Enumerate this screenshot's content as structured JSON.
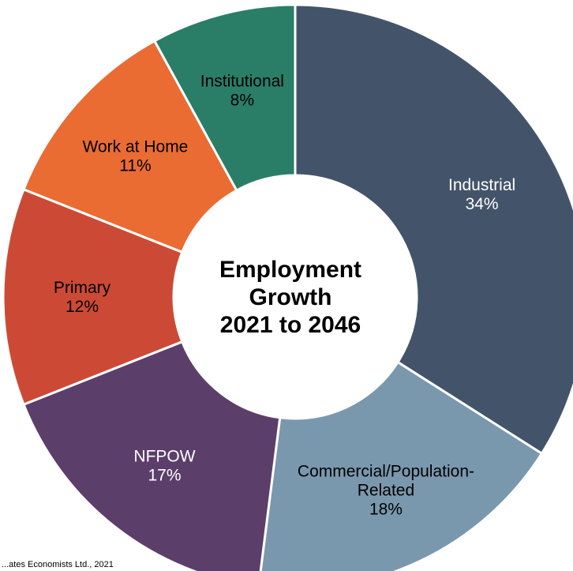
{
  "chart_data": {
    "type": "pie",
    "title": "Employment Growth 2021 to 2046",
    "title_lines": [
      "Employment",
      "Growth",
      "2021 to 2046"
    ],
    "slices": [
      {
        "name": "Industrial",
        "label_lines": [
          "Industrial"
        ],
        "value": 34,
        "value_label": "34%",
        "color": "#43546A",
        "text_color": "#ffffff"
      },
      {
        "name": "Commercial/Population-Related",
        "label_lines": [
          "Commercial/Population-",
          "Related"
        ],
        "value": 18,
        "value_label": "18%",
        "color": "#7A98AD",
        "text_color": "#000000"
      },
      {
        "name": "NFPOW",
        "label_lines": [
          "NFPOW"
        ],
        "value": 17,
        "value_label": "17%",
        "color": "#5C3E6B",
        "text_color": "#ffffff"
      },
      {
        "name": "Primary",
        "label_lines": [
          "Primary"
        ],
        "value": 12,
        "value_label": "12%",
        "color": "#CC4A35",
        "text_color": "#000000"
      },
      {
        "name": "Work at Home",
        "label_lines": [
          "Work at Home"
        ],
        "value": 11,
        "value_label": "11%",
        "color": "#EA6C33",
        "text_color": "#000000"
      },
      {
        "name": "Institutional",
        "label_lines": [
          "Institutional"
        ],
        "value": 8,
        "value_label": "8%",
        "color": "#2A7E68",
        "text_color": "#000000"
      }
    ]
  },
  "source_note": "...ates Economists Ltd., 2021"
}
